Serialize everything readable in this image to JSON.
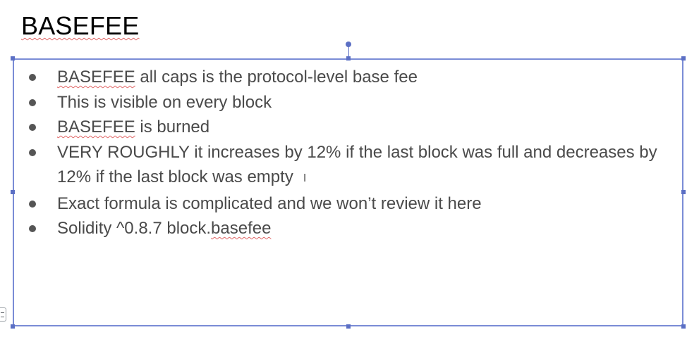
{
  "slide": {
    "title": "BASEFEE",
    "bullets": [
      {
        "flagged_word": "BASEFEE",
        "text": " all caps is the protocol-level base fee"
      },
      {
        "flagged_word": "",
        "text": "This is visible on every block"
      },
      {
        "flagged_word": "BASEFEE",
        "text": " is burned"
      },
      {
        "flagged_word": "",
        "text": "VERY ROUGHLY it increases by 12% if the last block was full and decreases by 12% if the last block was empty"
      },
      {
        "flagged_word": "",
        "text": "Exact formula is complicated and we won’t review it here"
      },
      {
        "text_before": "Solidity ^0.8.7 block.",
        "flagged_word": "basefee"
      }
    ]
  },
  "colors": {
    "selection_border": "#7a8cd6",
    "spellcheck_underline": "#e06666",
    "body_text": "#4a4a4a"
  },
  "icons": {
    "text_cursor": "i-beam-cursor-icon",
    "side_tab": "lines-tab-icon"
  }
}
